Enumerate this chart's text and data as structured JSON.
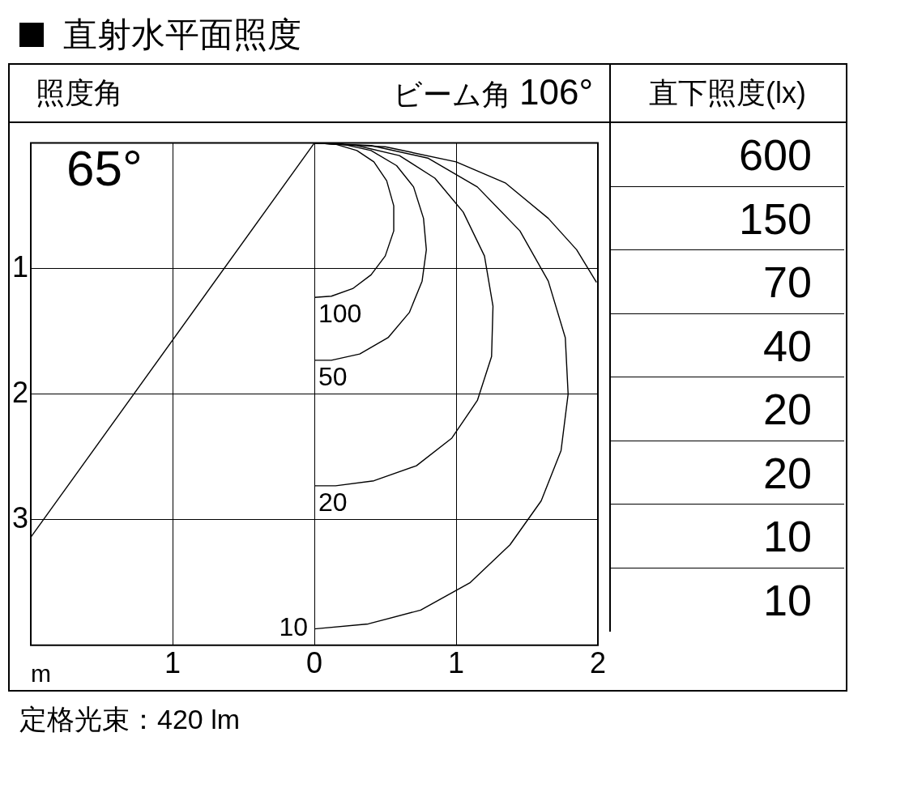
{
  "chart_data": [
    {
      "type": "line",
      "title": "直射水平面照度",
      "xlabel": "m",
      "annotations": [
        "照度角",
        "65°",
        "ビーム角",
        "106°",
        "定格光束：420 lm"
      ],
      "xlim": [
        -2,
        2
      ],
      "xticks": [
        {
          "value": -1,
          "label": "1"
        },
        0,
        1,
        2
      ],
      "ylim": [
        4,
        0
      ],
      "yticks": [
        1,
        2,
        3
      ],
      "grid": true,
      "marker": "none",
      "series": [
        {
          "name": "100",
          "color": "#000000",
          "x": [
            0,
            0.15,
            0.3,
            0.42,
            0.51,
            0.56,
            0.56,
            0.5,
            0.4,
            0.27,
            0.12,
            0
          ],
          "values": [
            0,
            0.01,
            0.06,
            0.15,
            0.3,
            0.5,
            0.7,
            0.9,
            1.05,
            1.16,
            1.22,
            1.23
          ]
        },
        {
          "name": "50",
          "color": "#000000",
          "x": [
            0,
            0.2,
            0.4,
            0.58,
            0.7,
            0.77,
            0.79,
            0.76,
            0.67,
            0.52,
            0.32,
            0.12,
            0
          ],
          "values": [
            0,
            0.01,
            0.06,
            0.18,
            0.35,
            0.6,
            0.85,
            1.1,
            1.35,
            1.55,
            1.68,
            1.73,
            1.73
          ]
        },
        {
          "name": "20",
          "color": "#000000",
          "x": [
            0,
            0.3,
            0.6,
            0.85,
            1.05,
            1.2,
            1.26,
            1.25,
            1.15,
            0.97,
            0.72,
            0.42,
            0.15,
            0
          ],
          "values": [
            0,
            0.02,
            0.1,
            0.28,
            0.55,
            0.9,
            1.3,
            1.7,
            2.05,
            2.35,
            2.57,
            2.69,
            2.73,
            2.73
          ]
        },
        {
          "name": "10",
          "color": "#000000",
          "x": [
            0,
            0.4,
            0.8,
            1.15,
            1.45,
            1.65,
            1.77,
            1.79,
            1.74,
            1.6,
            1.38,
            1.1,
            0.75,
            0.38,
            0
          ],
          "values": [
            0,
            0.02,
            0.12,
            0.35,
            0.7,
            1.1,
            1.55,
            2.0,
            2.45,
            2.85,
            3.2,
            3.5,
            3.72,
            3.83,
            3.87
          ]
        },
        {
          "color": "#000000",
          "x": [
            0,
            0.5,
            1.0,
            1.35,
            1.65,
            1.85,
            1.99
          ],
          "values": [
            0,
            0.03,
            0.15,
            0.32,
            0.6,
            0.85,
            1.11
          ]
        },
        {
          "color": "#000000",
          "x": [
            0,
            -2
          ],
          "values": [
            0,
            3.14
          ]
        }
      ]
    },
    {
      "type": "other",
      "title": "直下照度(lx)",
      "values": [
        600,
        150,
        70,
        40,
        20,
        20,
        10,
        10
      ],
      "data_labels": true
    }
  ]
}
